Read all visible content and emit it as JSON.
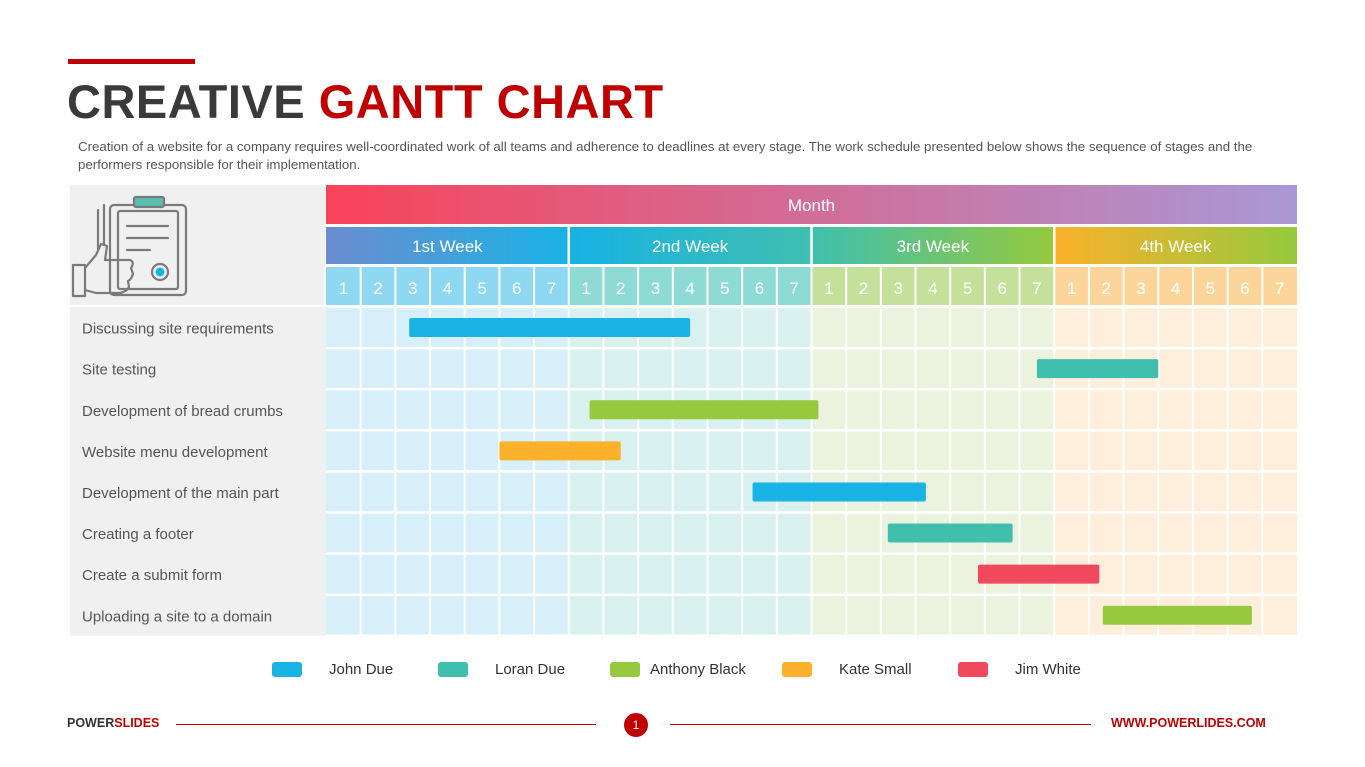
{
  "slide": {
    "title_part1": "CREATIVE",
    "title_part2": "GANTT CHART",
    "subtitle": "Creation of a website for a company requires well-coordinated work of all teams and adherence to deadlines at every stage. The work schedule presented below shows the sequence of stages and the performers responsible for their implementation."
  },
  "chart_data": {
    "type": "gantt",
    "header": "Month",
    "weeks": [
      {
        "label": "1st Week",
        "days": [
          "1",
          "2",
          "3",
          "4",
          "5",
          "6",
          "7"
        ],
        "head_from": "#6b8ccf",
        "head_to": "#1ab3e6",
        "day_bg": "#8fd8f2",
        "cell_bg": "#d6eff9"
      },
      {
        "label": "2nd Week",
        "days": [
          "1",
          "2",
          "3",
          "4",
          "5",
          "6",
          "7"
        ],
        "head_from": "#17b2e4",
        "head_to": "#40bfaf",
        "day_bg": "#8edbd3",
        "cell_bg": "#d8f1ee"
      },
      {
        "label": "3rd Week",
        "days": [
          "1",
          "2",
          "3",
          "4",
          "5",
          "6",
          "7"
        ],
        "head_from": "#40bfaf",
        "head_to": "#96c93d",
        "day_bg": "#c5e09a",
        "cell_bg": "#ebf3de"
      },
      {
        "label": "4th Week",
        "days": [
          "1",
          "2",
          "3",
          "4",
          "5",
          "6",
          "7"
        ],
        "head_from": "#fbb12b",
        "head_to": "#96c93d",
        "day_bg": "#fcd59a",
        "cell_bg": "#fdefdc"
      }
    ],
    "tasks": [
      {
        "name": "Discussing site requirements",
        "start": 3.4,
        "end": 11.5,
        "owner": "John Due"
      },
      {
        "name": "Site testing",
        "start": 21.5,
        "end": 25.0,
        "owner": "Loran Due"
      },
      {
        "name": "Development of bread crumbs",
        "start": 8.6,
        "end": 15.2,
        "owner": "Anthony Black"
      },
      {
        "name": "Website menu development",
        "start": 6.0,
        "end": 9.5,
        "owner": "Kate Small"
      },
      {
        "name": "Development of the main part",
        "start": 13.3,
        "end": 18.3,
        "owner": "John Due"
      },
      {
        "name": "Creating a footer",
        "start": 17.2,
        "end": 20.8,
        "owner": "Loran Due"
      },
      {
        "name": "Create a submit form",
        "start": 19.8,
        "end": 23.3,
        "owner": "Jim White"
      },
      {
        "name": "Uploading a site to a domain",
        "start": 23.4,
        "end": 27.7,
        "owner": "Anthony Black"
      }
    ],
    "legend": [
      {
        "name": "John Due",
        "color": "#1ab3e6"
      },
      {
        "name": "Loran Due",
        "color": "#40bfaf"
      },
      {
        "name": "Anthony Black",
        "color": "#96c93d"
      },
      {
        "name": "Kate Small",
        "color": "#fbb12b"
      },
      {
        "name": "Jim White",
        "color": "#f0485c"
      }
    ],
    "colors": {
      "month_from": "#f9435a",
      "month_to": "#a998d6",
      "label_bg": "#f0f0f0",
      "grid_line": "#ffffff"
    },
    "icon": "clipboard-thumbs-up-icon"
  },
  "footer": {
    "brand_part1": "POWER",
    "brand_part2": "SLIDES",
    "page": "1",
    "url": "WWW.POWERLIDES.COM"
  }
}
